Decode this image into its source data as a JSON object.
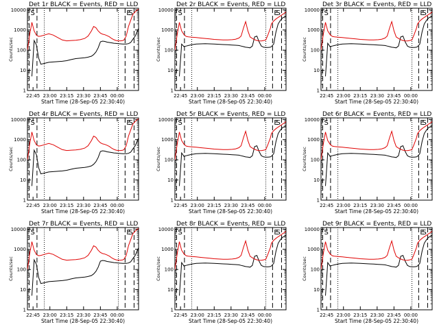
{
  "colors": {
    "events": "#000000",
    "lld": "#e00000",
    "axis": "#000000",
    "background": "#ffffff"
  },
  "chart_data": {
    "type": "line",
    "layout": "3x3 grid",
    "x_ticks": [
      "22:45",
      "23:00",
      "23:15",
      "23:30",
      "23:45",
      "00:00"
    ],
    "y_ticks": [
      "1",
      "10",
      "100",
      "1000",
      "10000"
    ],
    "ylim": [
      1,
      12000
    ],
    "yscale": "log",
    "xlim_minutes": [
      -5,
      94
    ],
    "xlabel": "Start Time (28-Sep-05 22:30:40)",
    "ylabel": "Counts/sec",
    "x_minutes": [
      -5,
      -3,
      -1,
      1,
      3,
      5,
      7,
      10,
      14,
      18,
      22,
      26,
      30,
      34,
      38,
      42,
      46,
      49,
      52,
      54,
      56,
      58,
      60,
      62,
      64,
      66,
      68,
      70,
      72,
      74,
      76,
      78,
      80,
      81,
      83,
      85,
      87,
      89,
      91,
      93,
      94
    ],
    "series_names": [
      "Events (BLACK)",
      "LLD (RED)"
    ],
    "annotation_letters": [
      "E",
      "S"
    ],
    "panels": [
      {
        "title": "Det 1r BLACK = Events, RED = LLD",
        "series": [
          {
            "name": "Events",
            "values": [
              null,
              null,
              5,
              300,
              180,
              40,
              20,
              22,
              25,
              26,
              27,
              28,
              30,
              34,
              38,
              40,
              42,
              45,
              50,
              60,
              80,
              130,
              260,
              280,
              270,
              250,
              240,
              230,
              220,
              215,
              210,
              205,
              200,
              200,
              200,
              210,
              240,
              350,
              500,
              900,
              1200
            ]
          },
          {
            "name": "LLD",
            "values": [
              100,
              600,
              2400,
              900,
              550,
              480,
              500,
              560,
              650,
              560,
              420,
              320,
              290,
              300,
              310,
              330,
              380,
              500,
              900,
              1500,
              1300,
              900,
              700,
              620,
              580,
              520,
              460,
              380,
              330,
              300,
              290,
              290,
              300,
              320,
              500,
              1500,
              3000,
              6000,
              8000,
              10000,
              11000
            ]
          }
        ],
        "dashed_lines": [
          -3.5,
          3.5,
          82,
          90
        ],
        "dotted_lines": [
          10,
          76
        ]
      },
      {
        "title": "Det 2r BLACK = Events, RED = LLD",
        "series": [
          {
            "name": "Events",
            "values": [
              null,
              null,
              5,
              200,
              150,
              160,
              170,
              185,
              200,
              205,
              210,
              205,
              200,
              195,
              190,
              185,
              180,
              175,
              170,
              160,
              150,
              140,
              135,
              130,
              160,
              450,
              500,
              260,
              160,
              140,
              135,
              135,
              140,
              150,
              200,
              800,
              2000,
              3000,
              4000,
              4500,
              5000
            ]
          },
          {
            "name": "LLD",
            "values": [
              100,
              600,
              2400,
              900,
              600,
              480,
              460,
              440,
              420,
              400,
              380,
              360,
              340,
              330,
              320,
              320,
              330,
              350,
              400,
              500,
              1200,
              2600,
              900,
              450,
              380,
              330,
              300,
              290,
              285,
              300,
              320,
              600,
              1200,
              2000,
              2800,
              3500,
              4200,
              5000,
              6000,
              7000,
              8000
            ]
          }
        ],
        "dashed_lines": [
          -3.5,
          3.5,
          82,
          90
        ],
        "dotted_lines": [
          10,
          76
        ]
      },
      {
        "title": "Det 3r BLACK = Events, RED = LLD",
        "series": [
          {
            "name": "Events",
            "values": [
              null,
              null,
              5,
              220,
              150,
              160,
              170,
              185,
              200,
              205,
              210,
              205,
              200,
              195,
              190,
              185,
              180,
              175,
              170,
              160,
              150,
              140,
              135,
              130,
              160,
              450,
              500,
              260,
              160,
              140,
              135,
              135,
              140,
              150,
              200,
              800,
              2000,
              3000,
              4000,
              4500,
              5000
            ]
          },
          {
            "name": "LLD",
            "values": [
              100,
              600,
              2400,
              900,
              600,
              480,
              460,
              440,
              420,
              400,
              380,
              360,
              340,
              330,
              320,
              320,
              330,
              350,
              400,
              500,
              1200,
              2600,
              900,
              450,
              380,
              330,
              300,
              290,
              285,
              300,
              320,
              600,
              1200,
              2000,
              2800,
              3500,
              4200,
              5000,
              6000,
              7000,
              8000
            ]
          }
        ],
        "dashed_lines": [
          -3.5,
          3.5,
          82,
          90
        ],
        "dotted_lines": [
          10,
          76
        ]
      },
      {
        "title": "Det 4r BLACK = Events, RED = LLD",
        "series": [
          {
            "name": "Events",
            "values": [
              null,
              null,
              5,
              300,
              180,
              40,
              20,
              22,
              25,
              26,
              27,
              28,
              30,
              34,
              38,
              40,
              42,
              45,
              50,
              60,
              80,
              130,
              260,
              280,
              270,
              250,
              240,
              230,
              220,
              215,
              210,
              205,
              200,
              200,
              200,
              210,
              240,
              350,
              500,
              900,
              1200
            ]
          },
          {
            "name": "LLD",
            "values": [
              100,
              600,
              2400,
              900,
              550,
              480,
              500,
              560,
              650,
              560,
              420,
              320,
              290,
              300,
              310,
              330,
              380,
              500,
              900,
              1500,
              1300,
              900,
              700,
              620,
              580,
              520,
              460,
              380,
              330,
              300,
              290,
              290,
              300,
              320,
              500,
              1500,
              3000,
              6000,
              8000,
              10000,
              11000
            ]
          }
        ],
        "dashed_lines": [
          -3.5,
          3.5,
          82,
          90
        ],
        "dotted_lines": [
          10,
          76
        ]
      },
      {
        "title": "Det 5r BLACK = Events, RED = LLD",
        "series": [
          {
            "name": "Events",
            "values": [
              null,
              null,
              5,
              220,
              150,
              160,
              170,
              185,
              200,
              205,
              210,
              205,
              200,
              195,
              190,
              185,
              180,
              175,
              170,
              160,
              150,
              140,
              135,
              130,
              160,
              450,
              500,
              260,
              160,
              140,
              135,
              135,
              140,
              150,
              200,
              800,
              2000,
              3000,
              4000,
              4500,
              5000
            ]
          },
          {
            "name": "LLD",
            "values": [
              100,
              600,
              2400,
              900,
              600,
              480,
              460,
              440,
              420,
              400,
              380,
              360,
              340,
              330,
              320,
              320,
              330,
              350,
              400,
              500,
              1200,
              2600,
              900,
              450,
              380,
              330,
              300,
              290,
              285,
              300,
              320,
              600,
              1200,
              2000,
              2800,
              3500,
              4200,
              5000,
              6000,
              7000,
              8000
            ]
          }
        ],
        "dashed_lines": [
          -3.5,
          3.5,
          82,
          90
        ],
        "dotted_lines": [
          10,
          76
        ]
      },
      {
        "title": "Det 6r BLACK = Events, RED = LLD",
        "series": [
          {
            "name": "Events",
            "values": [
              null,
              null,
              5,
              220,
              150,
              160,
              170,
              185,
              200,
              205,
              210,
              205,
              200,
              195,
              190,
              185,
              180,
              175,
              170,
              160,
              150,
              140,
              135,
              130,
              160,
              450,
              500,
              260,
              160,
              140,
              135,
              135,
              140,
              150,
              200,
              800,
              2000,
              3000,
              4000,
              4500,
              5000
            ]
          },
          {
            "name": "LLD",
            "values": [
              100,
              600,
              2400,
              900,
              600,
              480,
              460,
              440,
              420,
              400,
              380,
              360,
              340,
              330,
              320,
              320,
              330,
              350,
              400,
              500,
              1200,
              2600,
              900,
              450,
              380,
              330,
              300,
              290,
              285,
              300,
              320,
              600,
              1200,
              2000,
              2800,
              3500,
              4200,
              5000,
              6000,
              7000,
              8000
            ]
          }
        ],
        "dashed_lines": [
          -3.5,
          3.5,
          82,
          90
        ],
        "dotted_lines": [
          10,
          76
        ]
      },
      {
        "title": "Det 7r BLACK = Events, RED = LLD",
        "series": [
          {
            "name": "Events",
            "values": [
              null,
              null,
              5,
              300,
              180,
              40,
              20,
              22,
              25,
              26,
              27,
              28,
              30,
              34,
              38,
              40,
              42,
              45,
              50,
              60,
              80,
              130,
              260,
              280,
              270,
              250,
              240,
              230,
              220,
              215,
              210,
              205,
              200,
              200,
              200,
              210,
              240,
              350,
              500,
              900,
              1200
            ]
          },
          {
            "name": "LLD",
            "values": [
              100,
              600,
              2400,
              900,
              550,
              480,
              500,
              560,
              650,
              560,
              420,
              320,
              290,
              300,
              310,
              330,
              380,
              500,
              900,
              1500,
              1300,
              900,
              700,
              620,
              580,
              520,
              460,
              380,
              330,
              300,
              290,
              290,
              300,
              320,
              500,
              1500,
              3000,
              6000,
              8000,
              10000,
              11000
            ]
          }
        ],
        "dashed_lines": [
          -3.5,
          3.5,
          82,
          90
        ],
        "dotted_lines": [
          10,
          76
        ]
      },
      {
        "title": "Det 8r BLACK = Events, RED = LLD",
        "series": [
          {
            "name": "Events",
            "values": [
              null,
              null,
              5,
              220,
              150,
              160,
              170,
              185,
              200,
              205,
              210,
              205,
              200,
              195,
              190,
              185,
              180,
              175,
              170,
              160,
              150,
              140,
              135,
              130,
              160,
              450,
              500,
              260,
              160,
              140,
              135,
              135,
              140,
              150,
              200,
              800,
              2000,
              3000,
              4000,
              4500,
              5000
            ]
          },
          {
            "name": "LLD",
            "values": [
              100,
              600,
              2400,
              900,
              600,
              480,
              460,
              440,
              420,
              400,
              380,
              360,
              340,
              330,
              320,
              320,
              330,
              350,
              400,
              500,
              1200,
              2600,
              900,
              450,
              380,
              330,
              300,
              290,
              285,
              300,
              320,
              600,
              1200,
              2000,
              2800,
              3500,
              4200,
              5000,
              6000,
              7000,
              8000
            ]
          }
        ],
        "dashed_lines": [
          -3.5,
          3.5,
          82,
          90
        ],
        "dotted_lines": [
          10,
          76
        ]
      },
      {
        "title": "Det 9r BLACK = Events, RED = LLD",
        "series": [
          {
            "name": "Events",
            "values": [
              null,
              null,
              5,
              220,
              150,
              160,
              170,
              185,
              200,
              205,
              210,
              205,
              200,
              195,
              190,
              185,
              180,
              175,
              170,
              160,
              150,
              140,
              135,
              130,
              160,
              450,
              500,
              260,
              160,
              140,
              135,
              135,
              140,
              150,
              200,
              800,
              2000,
              3000,
              4000,
              4500,
              5000
            ]
          },
          {
            "name": "LLD",
            "values": [
              100,
              600,
              2400,
              900,
              600,
              480,
              460,
              440,
              420,
              400,
              380,
              360,
              340,
              330,
              320,
              320,
              330,
              350,
              400,
              500,
              1200,
              2600,
              900,
              450,
              380,
              330,
              300,
              290,
              285,
              300,
              320,
              600,
              1200,
              2000,
              2800,
              3500,
              4200,
              5000,
              6000,
              7000,
              8000
            ]
          }
        ],
        "dashed_lines": [
          -3.5,
          3.5,
          82,
          90
        ],
        "dotted_lines": [
          10,
          76
        ]
      }
    ]
  }
}
